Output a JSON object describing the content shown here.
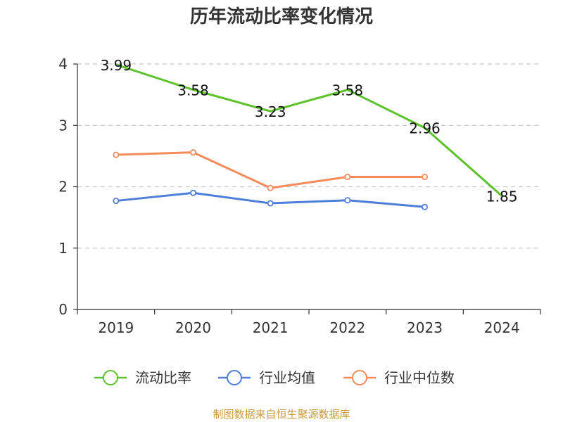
{
  "chart_data": {
    "type": "line",
    "title": "历年流动比率变化情况",
    "categories": [
      "2019",
      "2020",
      "2021",
      "2022",
      "2023",
      "2024"
    ],
    "ylim": [
      0,
      4
    ],
    "yticks": [
      "0",
      "1",
      "2",
      "3",
      "4"
    ],
    "grid": true,
    "legend_position": "bottom",
    "series": [
      {
        "name": "流动比率",
        "color": "#5cc22c",
        "values": [
          3.99,
          3.58,
          3.23,
          3.58,
          2.96,
          1.85
        ],
        "labels": [
          "3.99",
          "3.58",
          "3.23",
          "3.58",
          "2.96",
          "1.85"
        ]
      },
      {
        "name": "行业均值",
        "color": "#4e7fd9",
        "values": [
          1.77,
          1.9,
          1.73,
          1.78,
          1.67,
          null
        ]
      },
      {
        "name": "行业中位数",
        "color": "#f48b5a",
        "values": [
          2.52,
          2.56,
          1.98,
          2.16,
          2.16,
          null
        ]
      }
    ]
  },
  "footer": {
    "source_text": "制图数据来自恒生聚源数据库"
  }
}
